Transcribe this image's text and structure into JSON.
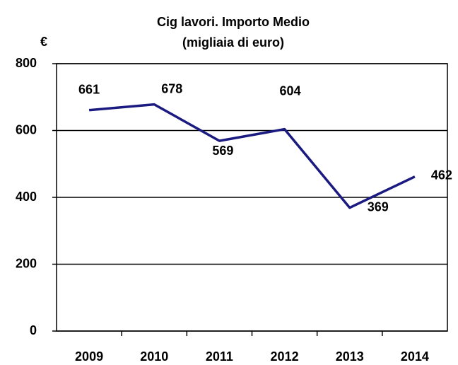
{
  "chart_data": {
    "type": "line",
    "title": "Cig lavori. Importo Medio",
    "subtitle": "(migliaia di euro)",
    "y_label": "€",
    "categories": [
      "2009",
      "2010",
      "2011",
      "2012",
      "2013",
      "2014"
    ],
    "series": [
      {
        "name": "Importo Medio",
        "color": "#1a1a80",
        "values": [
          661,
          678,
          569,
          604,
          369,
          462
        ]
      }
    ],
    "ylim": [
      0,
      800
    ],
    "yticks": [
      0,
      200,
      400,
      600,
      800
    ],
    "grid": true
  }
}
